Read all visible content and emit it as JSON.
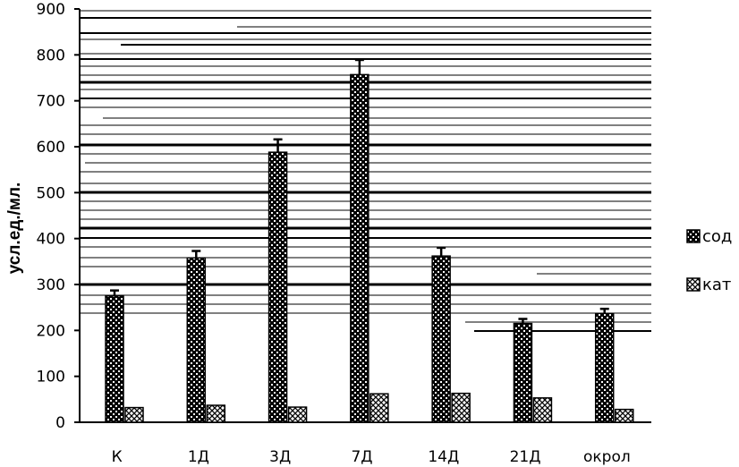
{
  "chart_data": {
    "type": "bar",
    "title": "",
    "xlabel": "",
    "ylabel": "усл.ед./мл.",
    "ylim": [
      0,
      900
    ],
    "yticks": [
      0,
      100,
      200,
      300,
      400,
      500,
      600,
      700,
      800,
      900
    ],
    "categories": [
      "К",
      "1Д",
      "3Д",
      "7Д",
      "14Д",
      "21Д",
      "окрол"
    ],
    "series": [
      {
        "name": "сод",
        "values": [
          275,
          358,
          588,
          757,
          362,
          215,
          237
        ],
        "errors": [
          12,
          15,
          28,
          32,
          18,
          10,
          10
        ],
        "pattern": "dense-check"
      },
      {
        "name": "кат",
        "values": [
          32,
          37,
          33,
          62,
          63,
          53,
          28
        ],
        "errors": [
          0,
          0,
          0,
          0,
          0,
          0,
          0
        ],
        "pattern": "light-check"
      }
    ],
    "legend": "right",
    "grid": false
  }
}
